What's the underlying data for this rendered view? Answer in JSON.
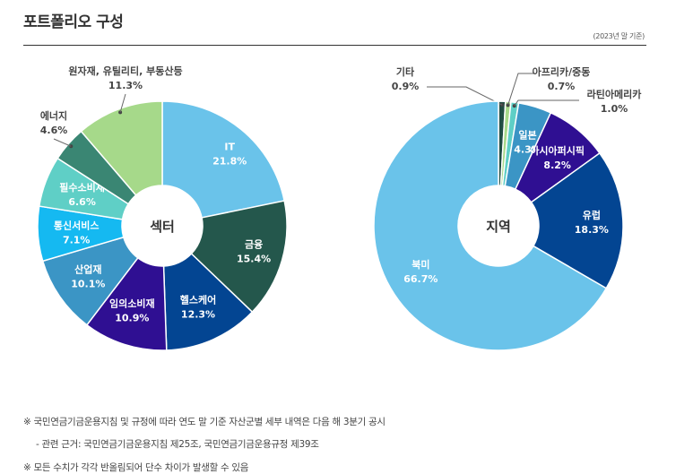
{
  "header": {
    "title": "포트폴리오 구성",
    "basis": "(2023년 말 기준)"
  },
  "chart_data": [
    {
      "type": "pie",
      "center_label": "섹터",
      "slices": [
        {
          "name": "IT",
          "value": 21.8,
          "value_label": "21.8%",
          "color": "#6ac3ea"
        },
        {
          "name": "금융",
          "value": 15.4,
          "value_label": "15.4%",
          "color": "#24574c"
        },
        {
          "name": "헬스케어",
          "value": 12.3,
          "value_label": "12.3%",
          "color": "#034592"
        },
        {
          "name": "임의소비재",
          "value": 10.9,
          "value_label": "10.9%",
          "color": "#2f0f92"
        },
        {
          "name": "산업재",
          "value": 10.1,
          "value_label": "10.1%",
          "color": "#3b95c5"
        },
        {
          "name": "통신서비스",
          "value": 7.1,
          "value_label": "7.1%",
          "color": "#15b9f1"
        },
        {
          "name": "필수소비재",
          "value": 6.6,
          "value_label": "6.6%",
          "color": "#5fcfc6"
        },
        {
          "name": "에너지",
          "value": 4.6,
          "value_label": "4.6%",
          "color": "#3a8673"
        },
        {
          "name": "원자재, 유틸리티, 부동산등",
          "value": 11.3,
          "value_label": "11.3%",
          "color": "#a6d98a"
        }
      ]
    },
    {
      "type": "pie",
      "center_label": "지역",
      "slices": [
        {
          "name": "기타",
          "value": 0.9,
          "value_label": "0.9%",
          "color": "#214d43"
        },
        {
          "name": "아프리카/중동",
          "value": 0.7,
          "value_label": "0.7%",
          "color": "#a7d98a"
        },
        {
          "name": "라틴아메리카",
          "value": 1.0,
          "value_label": "1.0%",
          "color": "#5ecfc6"
        },
        {
          "name": "일본",
          "value": 4.3,
          "value_label": "4.3%",
          "color": "#3b95c5"
        },
        {
          "name": "아시아퍼시픽",
          "value": 8.2,
          "value_label": "8.2%",
          "color": "#2f0f92"
        },
        {
          "name": "유럽",
          "value": 18.3,
          "value_label": "18.3%",
          "color": "#034592"
        },
        {
          "name": "북미",
          "value": 66.7,
          "value_label": "66.7%",
          "color": "#6ac3ea"
        }
      ]
    }
  ],
  "footnotes": {
    "line1": "※  국민연금기금운용지침 및 규정에 따라 연도 말 기준 자산군별 세부 내역은 다음 해 3분기 공시",
    "line2": "-  관련 근거: 국민연금기금운용지침 제25조, 국민연금기금운용규정 제39조",
    "line3": "※  모든 수치가 각각 반올림되어 단수 차이가 발생할 수 있음"
  }
}
